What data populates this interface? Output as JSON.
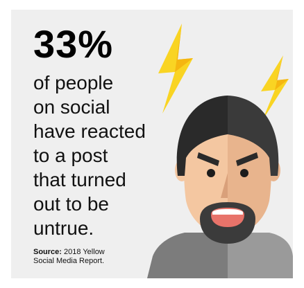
{
  "headline": {
    "stat": "33%",
    "lines": [
      "of people",
      "on social",
      "have reacted",
      "to a post",
      "that turned",
      "out to be",
      "untrue."
    ]
  },
  "source": {
    "label": "Source:",
    "line1": "2018 Yellow",
    "line2": "Social Media Report."
  },
  "illustration": {
    "subject": "angry-man-with-lightning",
    "colors": {
      "background": "#efefef",
      "bolt": "#f9d423",
      "bolt_shadow": "#f5b611",
      "hair_dark": "#2a2a2a",
      "hair_light": "#3a3a3a",
      "skin_left": "#f4c7a1",
      "skin_right": "#e8b48d",
      "mouth": "#e8736a",
      "beard": "#3b3b3b",
      "shirt_left": "#7c7c7c",
      "shirt_right": "#9a9a9a"
    }
  }
}
